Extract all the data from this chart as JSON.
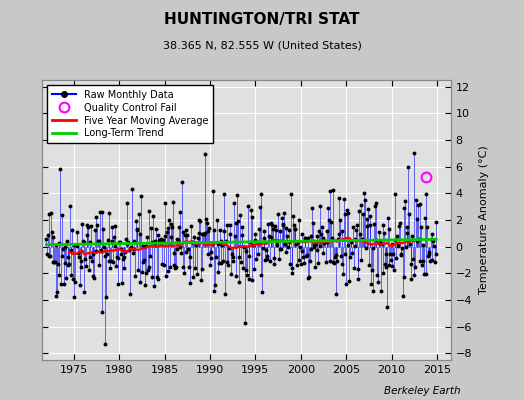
{
  "title": "HUNTINGTON/TRI STAT",
  "subtitle": "38.365 N, 82.555 W (United States)",
  "ylabel": "Temperature Anomaly (°C)",
  "watermark": "Berkeley Earth",
  "xlim": [
    1971.5,
    2016.5
  ],
  "ylim": [
    -8.5,
    12.5
  ],
  "yticks": [
    -8,
    -6,
    -4,
    -2,
    0,
    2,
    4,
    6,
    8,
    10,
    12
  ],
  "xticks": [
    1975,
    1980,
    1985,
    1990,
    1995,
    2000,
    2005,
    2010,
    2015
  ],
  "bg_color": "#c8c8c8",
  "plot_bg_color": "#e0e0e0",
  "grid_color": "#ffffff",
  "line_color": "#0000ff",
  "marker_color": "#000000",
  "moving_avg_color": "#ff0000",
  "trend_color": "#00cc00",
  "qc_fail_color": "#ff00ff",
  "start_year": 1972,
  "n_months": 516,
  "seed": 42,
  "qc_fail_x": 2013.75,
  "qc_fail_y": 5.2
}
